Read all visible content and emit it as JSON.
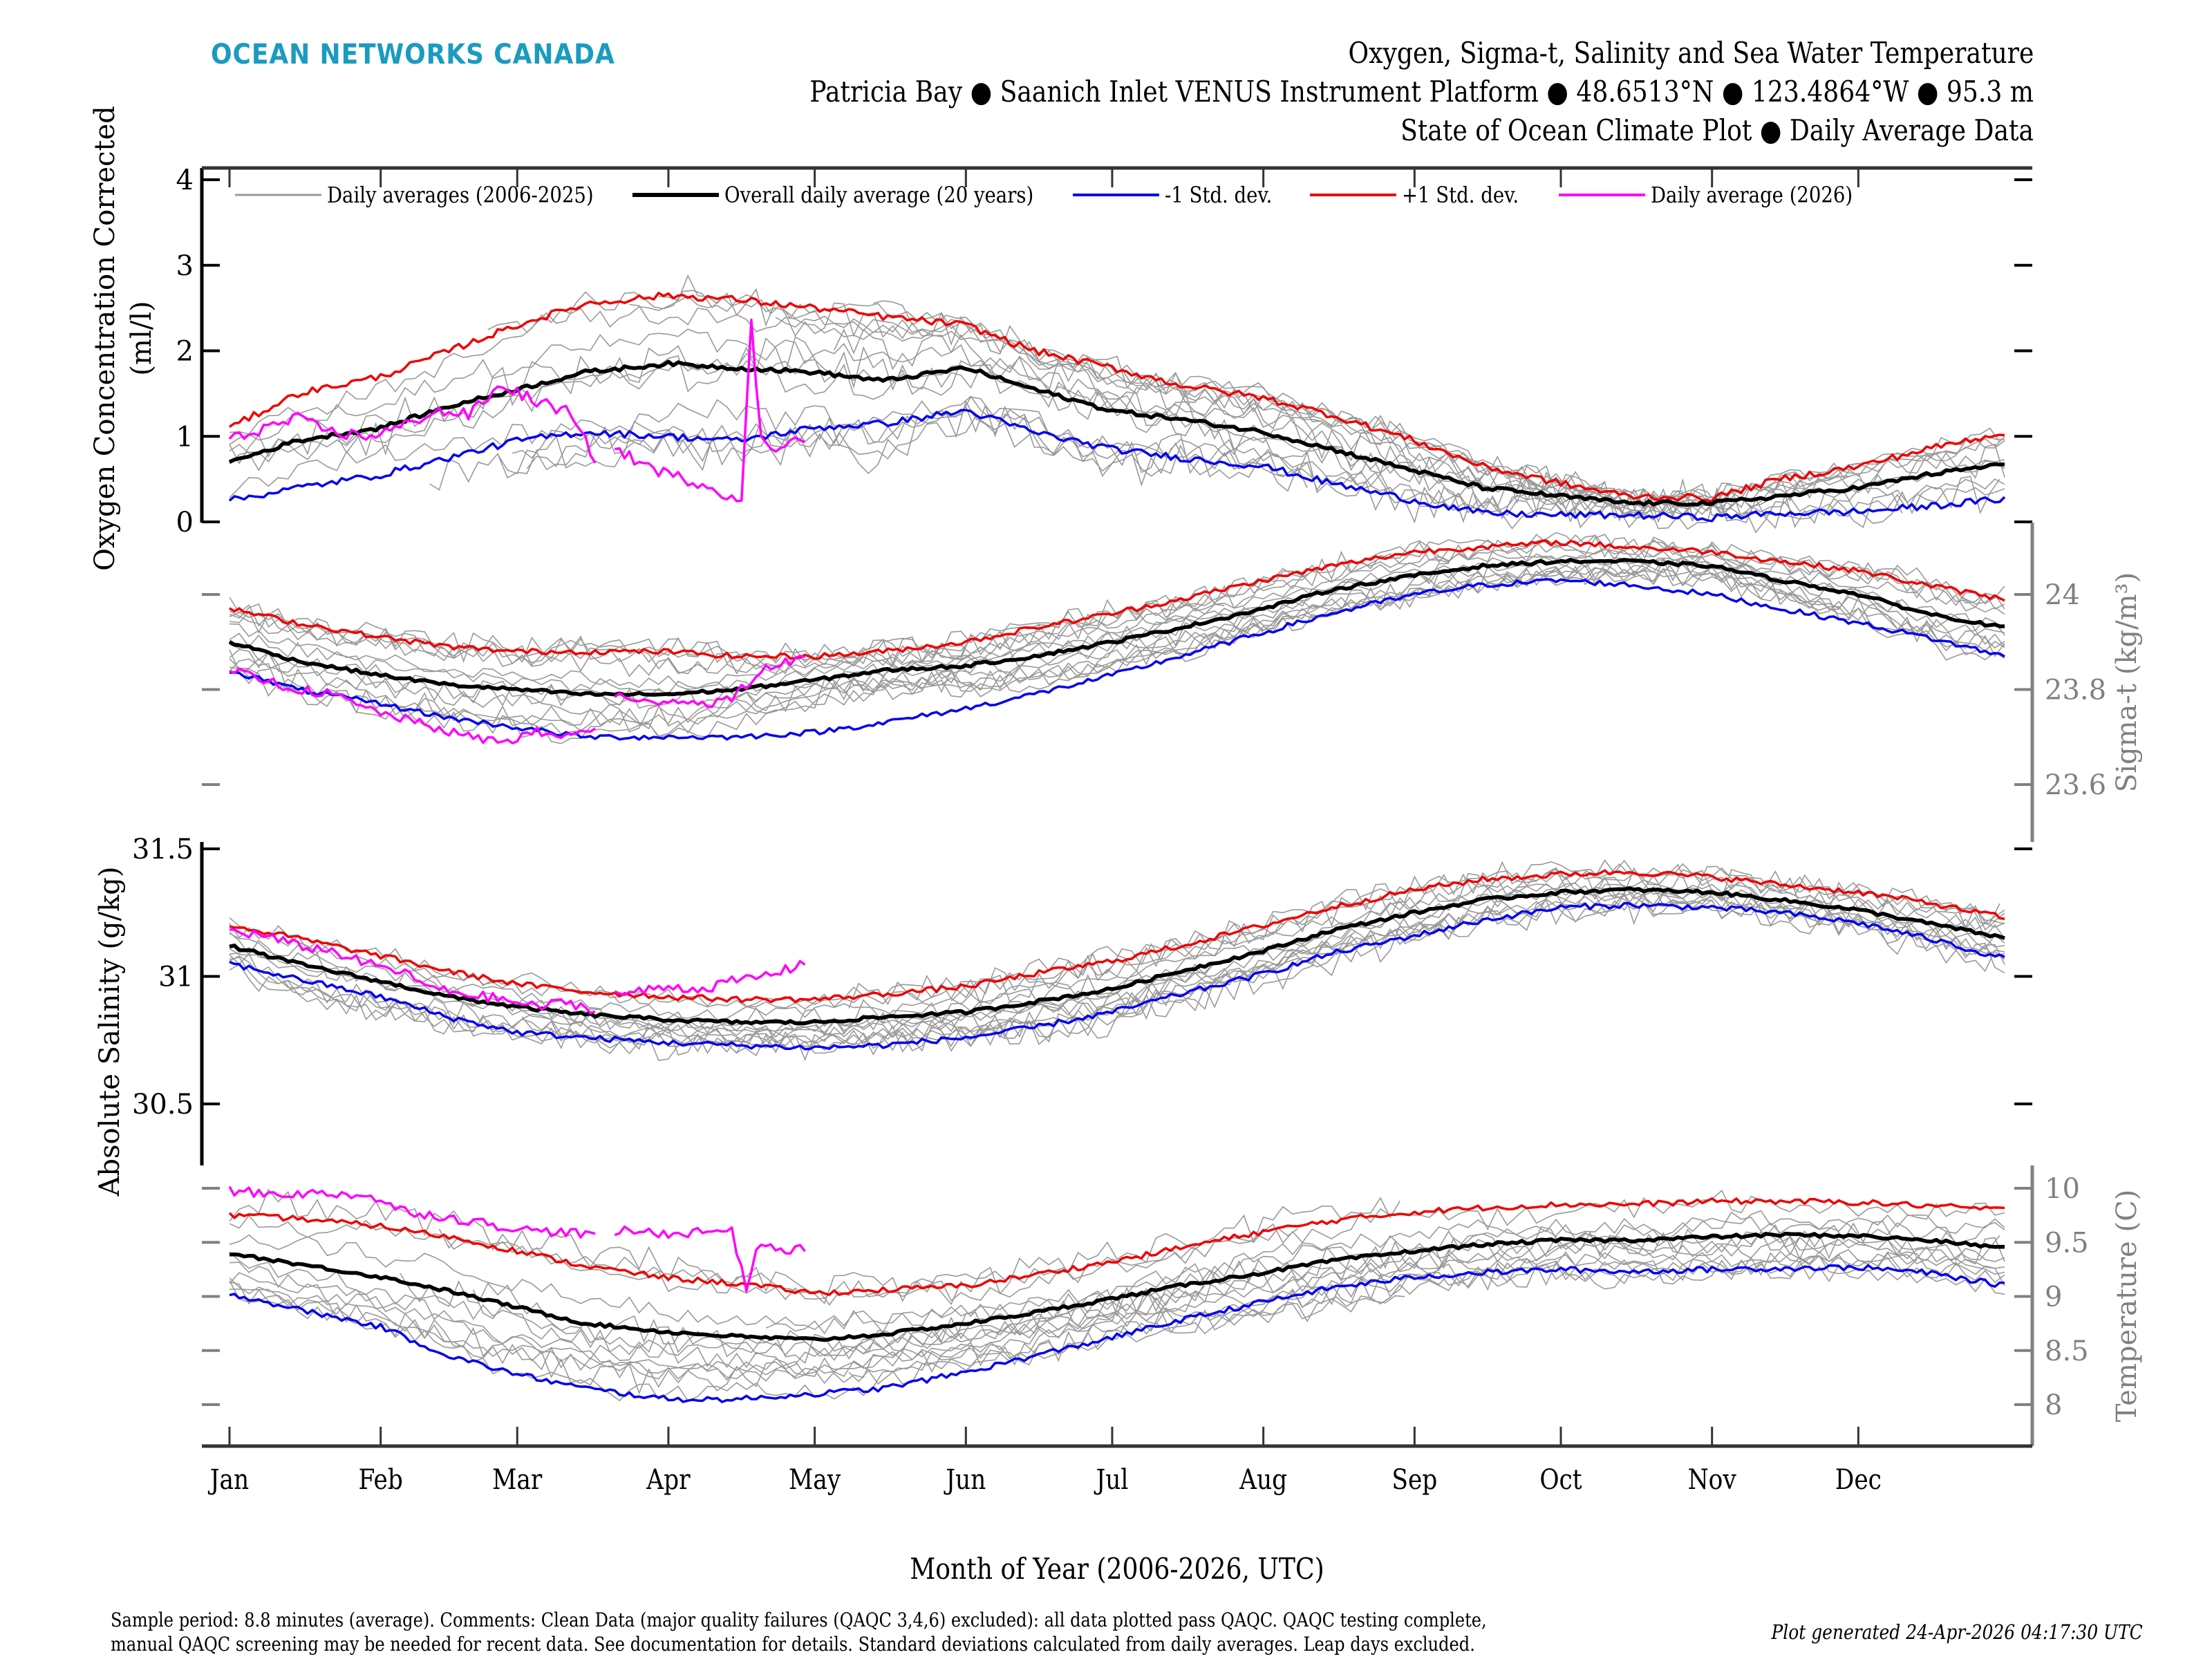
{
  "logo": "OCEAN NETWORKS CANADA",
  "title": {
    "line1": "Oxygen, Sigma-t, Salinity and Sea Water Temperature",
    "line2": "Patricia Bay ● Saanich Inlet VENUS Instrument Platform ● 48.6513°N ● 123.4864°W ● 95.3 m",
    "line3": "State of Ocean Climate Plot ● Daily Average Data"
  },
  "footer": {
    "line1": "Sample period: 8.8 minutes (average). Comments: Clean Data (major quality failures (QAQC 3,4,6) excluded): all data plotted pass QAQC. QAQC testing complete,",
    "line2": "manual QAQC screening may be needed for recent data. See documentation for details. Standard deviations calculated from daily averages. Leap days excluded.",
    "generated": "Plot generated 24-Apr-2026 04:17:30 UTC"
  },
  "colors": {
    "history": "#999999",
    "mean": "#000000",
    "minus_std": "#0000ee",
    "plus_std": "#ee0000",
    "current": "#ff00ff",
    "right_axis": "#808080",
    "logo": "#1a9bc0"
  },
  "chart_data": {
    "type": "line",
    "xlabel": "Month of Year (2006-2026, UTC)",
    "x_ticks": [
      "Jan",
      "Feb",
      "Mar",
      "Apr",
      "May",
      "Jun",
      "Jul",
      "Aug",
      "Sep",
      "Oct",
      "Nov",
      "Dec"
    ],
    "x_tick_days": [
      1,
      32,
      60,
      91,
      121,
      152,
      182,
      213,
      244,
      274,
      305,
      335
    ],
    "xlim": [
      1,
      365
    ],
    "legend": {
      "placement": "top",
      "entries": [
        {
          "key": "history",
          "label": "Daily averages (2006-2025)"
        },
        {
          "key": "mean",
          "label": "Overall daily average (20 years)"
        },
        {
          "key": "minus_std",
          "label": "-1 Std. dev."
        },
        {
          "key": "plus_std",
          "label": "+1 Std. dev."
        },
        {
          "key": "current",
          "label": "Daily average (2026)"
        }
      ]
    },
    "panels": [
      {
        "name": "oxygen",
        "ylabel_line1": "Oxygen Concentration Corrected",
        "ylabel_line2": "(ml/l)",
        "axis_side": "left",
        "ylim": [
          0,
          4
        ],
        "y_ticks": [
          "0",
          "1",
          "2",
          "3",
          "4"
        ],
        "y_tick_values": [
          0,
          1,
          2,
          3,
          4
        ],
        "series": {
          "day": [
            1,
            15,
            32,
            46,
            60,
            74,
            91,
            105,
            121,
            135,
            152,
            166,
            182,
            196,
            213,
            227,
            244,
            258,
            274,
            288,
            305,
            319,
            335,
            349,
            365
          ],
          "mean": [
            0.7,
            0.95,
            1.1,
            1.35,
            1.55,
            1.75,
            1.85,
            1.8,
            1.75,
            1.65,
            1.8,
            1.55,
            1.3,
            1.2,
            1.05,
            0.85,
            0.6,
            0.4,
            0.3,
            0.22,
            0.22,
            0.3,
            0.4,
            0.55,
            0.68
          ],
          "plus_std": [
            1.1,
            1.5,
            1.7,
            2.0,
            2.3,
            2.55,
            2.65,
            2.6,
            2.5,
            2.4,
            2.3,
            2.0,
            1.8,
            1.6,
            1.45,
            1.25,
            0.95,
            0.65,
            0.45,
            0.3,
            0.28,
            0.5,
            0.65,
            0.85,
            1.05
          ],
          "minus_std": [
            0.25,
            0.4,
            0.55,
            0.75,
            0.95,
            1.05,
            1.0,
            0.95,
            1.1,
            1.15,
            1.3,
            1.05,
            0.85,
            0.75,
            0.65,
            0.45,
            0.25,
            0.1,
            0.08,
            0.08,
            0.05,
            0.1,
            0.12,
            0.18,
            0.27
          ],
          "current_day": [
            1,
            8,
            15,
            22,
            29,
            36,
            43,
            50,
            57,
            64,
            70,
            76,
            80,
            85,
            91,
            98,
            104,
            106,
            108,
            110,
            113,
            116,
            119
          ],
          "current": [
            0.95,
            1.1,
            1.2,
            1.05,
            1.0,
            1.1,
            1.3,
            1.25,
            1.6,
            1.4,
            1.3,
            0.75,
            0.85,
            0.7,
            0.55,
            0.45,
            0.3,
            0.2,
            2.35,
            0.95,
            0.85,
            1.0,
            0.9
          ],
          "current_gap_after_day": 76
        }
      },
      {
        "name": "sigma_t",
        "ylabel_line1": "Sigma-t (kg/m³)",
        "axis_side": "right",
        "ylim": [
          23.52,
          24.08
        ],
        "y_ticks": [
          "23.6",
          "23.8",
          "24"
        ],
        "y_tick_values": [
          23.6,
          23.8,
          24.0
        ],
        "series": {
          "day": [
            1,
            15,
            32,
            46,
            60,
            74,
            91,
            105,
            121,
            135,
            152,
            166,
            182,
            196,
            213,
            227,
            244,
            258,
            274,
            288,
            305,
            319,
            335,
            349,
            365
          ],
          "mean": [
            23.9,
            23.86,
            23.83,
            23.81,
            23.8,
            23.79,
            23.79,
            23.8,
            23.82,
            23.84,
            23.85,
            23.87,
            23.9,
            23.93,
            23.97,
            24.01,
            24.04,
            24.06,
            24.07,
            24.07,
            24.06,
            24.03,
            24.0,
            23.96,
            23.93
          ],
          "plus_std": [
            23.97,
            23.94,
            23.91,
            23.89,
            23.88,
            23.88,
            23.88,
            23.87,
            23.87,
            23.88,
            23.9,
            23.93,
            23.96,
            23.99,
            24.03,
            24.06,
            24.09,
            24.1,
            24.11,
            24.1,
            24.09,
            24.07,
            24.05,
            24.02,
            23.99
          ],
          "minus_std": [
            23.84,
            23.8,
            23.77,
            23.74,
            23.72,
            23.7,
            23.7,
            23.7,
            23.71,
            23.73,
            23.76,
            23.79,
            23.83,
            23.87,
            23.92,
            23.96,
            24.0,
            24.02,
            24.03,
            24.02,
            24.0,
            23.97,
            23.94,
            23.91,
            23.87
          ],
          "current_day": [
            1,
            8,
            15,
            22,
            29,
            36,
            43,
            50,
            57,
            64,
            70,
            76,
            80,
            85,
            91,
            98,
            104,
            110,
            116,
            119
          ],
          "current": [
            23.84,
            23.82,
            23.8,
            23.79,
            23.76,
            23.74,
            23.72,
            23.7,
            23.69,
            23.71,
            23.7,
            23.72,
            23.79,
            23.77,
            23.78,
            23.77,
            23.78,
            23.84,
            23.86,
            23.87
          ],
          "current_gap_after_day": 76
        }
      },
      {
        "name": "salinity",
        "ylabel_line1": "Absolute Salinity (g/kg)",
        "axis_side": "left",
        "ylim": [
          30.45,
          31.55
        ],
        "y_ticks": [
          "30.5",
          "31",
          "31.5"
        ],
        "y_tick_values": [
          30.5,
          31.0,
          31.5
        ],
        "series": {
          "day": [
            1,
            15,
            32,
            46,
            60,
            74,
            91,
            105,
            121,
            135,
            152,
            166,
            182,
            196,
            213,
            227,
            244,
            258,
            274,
            288,
            305,
            319,
            335,
            349,
            365
          ],
          "mean": [
            31.12,
            31.05,
            30.98,
            30.92,
            30.88,
            30.85,
            30.83,
            30.82,
            30.82,
            30.84,
            30.86,
            30.9,
            30.95,
            31.02,
            31.1,
            31.18,
            31.25,
            31.3,
            31.33,
            31.34,
            31.33,
            31.3,
            31.26,
            31.21,
            31.15
          ],
          "plus_std": [
            31.2,
            31.15,
            31.08,
            31.02,
            30.97,
            30.94,
            30.92,
            30.91,
            30.91,
            30.93,
            30.96,
            31.01,
            31.06,
            31.12,
            31.2,
            31.27,
            31.34,
            31.38,
            31.4,
            31.41,
            31.39,
            31.36,
            31.33,
            31.29,
            31.23
          ],
          "minus_std": [
            31.05,
            30.99,
            30.92,
            30.84,
            30.78,
            30.76,
            30.74,
            30.73,
            30.72,
            30.73,
            30.76,
            30.8,
            30.86,
            30.93,
            31.01,
            31.09,
            31.16,
            31.22,
            31.27,
            31.28,
            31.27,
            31.25,
            31.21,
            31.15,
            31.07
          ],
          "current_day": [
            1,
            8,
            15,
            22,
            29,
            36,
            43,
            50,
            57,
            64,
            70,
            76,
            80,
            85,
            91,
            98,
            104,
            110,
            116,
            119
          ],
          "current": [
            31.18,
            31.16,
            31.12,
            31.1,
            31.05,
            31.02,
            30.95,
            30.93,
            30.91,
            30.88,
            30.9,
            30.87,
            30.93,
            30.94,
            30.96,
            30.95,
            30.98,
            31.0,
            31.03,
            31.06
          ],
          "current_gap_after_day": 76
        }
      },
      {
        "name": "temperature",
        "ylabel_line1": "Temperature (C)",
        "axis_side": "right",
        "ylim": [
          7.6,
          10.15
        ],
        "y_ticks": [
          "8",
          "8.5",
          "9",
          "9.5",
          "10"
        ],
        "y_tick_values": [
          8,
          8.5,
          9,
          9.5,
          10
        ],
        "series": {
          "day": [
            1,
            15,
            32,
            46,
            60,
            74,
            91,
            105,
            121,
            135,
            152,
            166,
            182,
            196,
            213,
            227,
            244,
            258,
            274,
            288,
            305,
            319,
            335,
            349,
            365
          ],
          "mean": [
            9.4,
            9.3,
            9.18,
            9.05,
            8.9,
            8.75,
            8.67,
            8.63,
            8.6,
            8.65,
            8.75,
            8.85,
            8.98,
            9.1,
            9.22,
            9.33,
            9.42,
            9.48,
            9.52,
            9.52,
            9.55,
            9.57,
            9.56,
            9.52,
            9.45
          ],
          "plus_std": [
            9.75,
            9.72,
            9.65,
            9.55,
            9.42,
            9.28,
            9.17,
            9.12,
            9.03,
            9.06,
            9.1,
            9.2,
            9.32,
            9.45,
            9.6,
            9.7,
            9.78,
            9.82,
            9.85,
            9.85,
            9.88,
            9.88,
            9.87,
            9.84,
            9.8
          ],
          "minus_std": [
            9.03,
            8.88,
            8.72,
            8.45,
            8.28,
            8.15,
            8.05,
            8.05,
            8.1,
            8.15,
            8.3,
            8.45,
            8.62,
            8.78,
            8.95,
            9.08,
            9.18,
            9.22,
            9.25,
            9.23,
            9.25,
            9.26,
            9.27,
            9.22,
            9.1
          ],
          "current_day": [
            1,
            8,
            15,
            22,
            29,
            36,
            43,
            50,
            57,
            64,
            70,
            76,
            80,
            85,
            91,
            98,
            104,
            107,
            109,
            111,
            114,
            117,
            119
          ],
          "current": [
            9.98,
            9.95,
            9.95,
            9.95,
            9.94,
            9.8,
            9.75,
            9.7,
            9.65,
            9.6,
            9.6,
            9.55,
            9.6,
            9.6,
            9.58,
            9.6,
            9.62,
            9.05,
            9.45,
            9.5,
            9.4,
            9.45,
            9.42
          ],
          "current_gap_after_day": 76
        }
      }
    ]
  }
}
